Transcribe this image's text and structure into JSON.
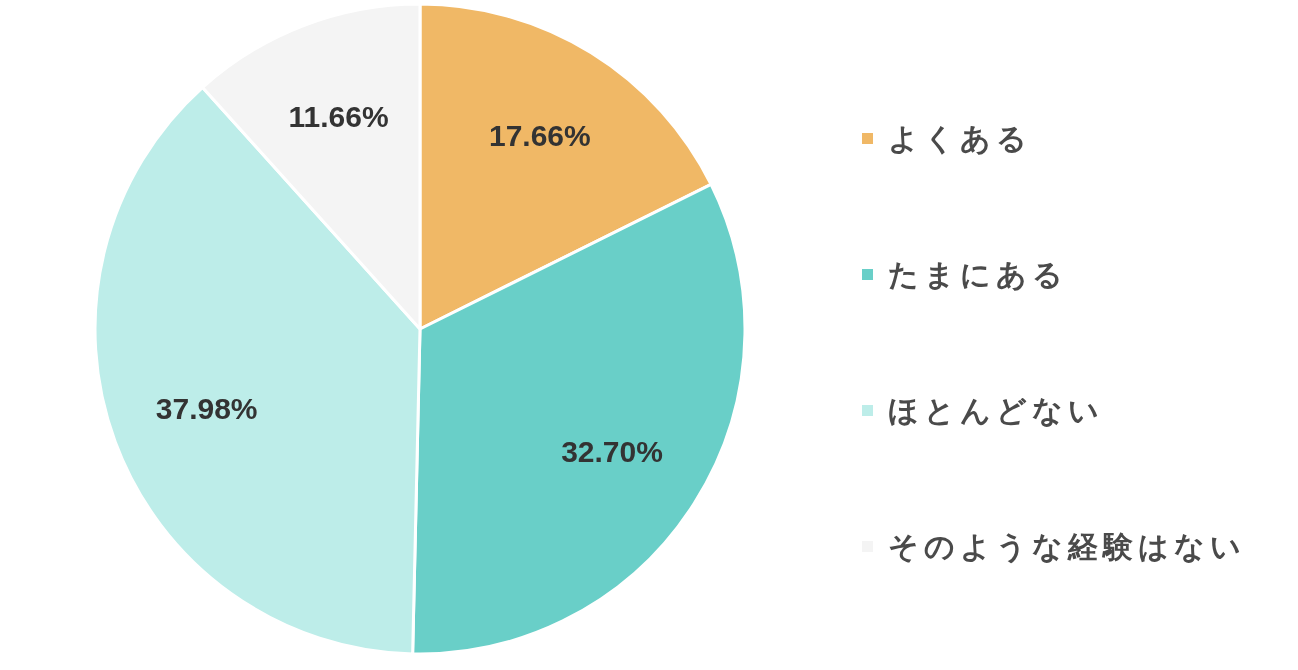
{
  "chart_data": {
    "type": "pie",
    "categories": [
      "よくある",
      "たまにある",
      "ほとんどない",
      "そのような経験はない"
    ],
    "values": [
      17.66,
      32.7,
      37.98,
      11.66
    ],
    "value_labels": [
      "17.66%",
      "32.70%",
      "37.98%",
      "11.66%"
    ],
    "colors": [
      "#f0b866",
      "#69cfc8",
      "#bdede9",
      "#f4f4f4"
    ],
    "legend": "right"
  }
}
